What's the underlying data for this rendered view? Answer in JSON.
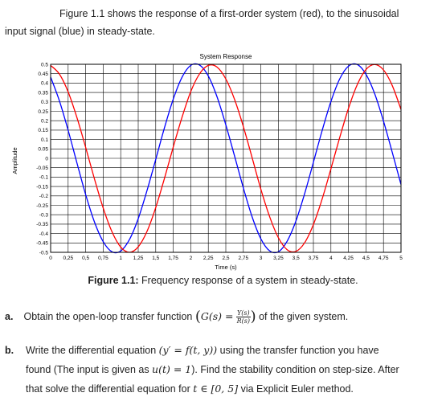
{
  "intro": {
    "line1": "Figure 1.1 shows the response of a first-order system (red), to the sinusoidal",
    "line2": "input signal (blue) in steady-state."
  },
  "caption": {
    "label": "Figure 1.1:",
    "text": " Frequency response of a system in steady-state."
  },
  "question_a": {
    "label": "a.",
    "text_before": "Obtain the open-loop transfer function ",
    "gs": "G(s) =",
    "num": "Y(s)",
    "den": "R(s)",
    "text_after": " of the given system."
  },
  "question_b": {
    "label": "b.",
    "line1_a": "Write the differential equation ",
    "eq1": "(y′ = f(t, y))",
    "line1_b": " using the transfer function you have",
    "line2_a": "found (The input is given as ",
    "eq2": "u(t) = 1",
    "line2_b": "). Find the stability condition on step-size. After",
    "line3_a": "that solve the differential equation for ",
    "eq3": "t ∈ [0, 5]",
    "line3_b": " via Explicit Euler method."
  },
  "chart_data": {
    "type": "line",
    "title": "System Response",
    "xlabel": "Time (s)",
    "ylabel": "Amplitude",
    "xlim": [
      0,
      5
    ],
    "ylim": [
      -0.5,
      0.5
    ],
    "grid": true,
    "x_ticks": [
      "0",
      "0,25",
      "0,5",
      "0,75",
      "1",
      "1,25",
      "1,5",
      "1,75",
      "2",
      "2,25",
      "2,5",
      "2,75",
      "3",
      "3,25",
      "3,5",
      "3,75",
      "4",
      "4,25",
      "4,5",
      "4,75",
      "5"
    ],
    "y_ticks": [
      "0.5",
      "0.45",
      "0.4",
      "0.35",
      "0.3",
      "0.25",
      "0.2",
      "0.15",
      "0.1",
      "0.05",
      "0",
      "-0.05",
      "-0.1",
      "-0.15",
      "-0.2",
      "-0.25",
      "-0.3",
      "-0.35",
      "-0.4",
      "-0.45",
      "-0.5"
    ],
    "series": [
      {
        "color": "#0000ff",
        "x": [
          0,
          0.125,
          0.25,
          0.375,
          0.5,
          0.625,
          0.75,
          0.875,
          1.0,
          1.125,
          1.25,
          1.375,
          1.5,
          1.625,
          1.75,
          1.875,
          2.0,
          2.125,
          2.25,
          2.375,
          2.5,
          2.625,
          2.75,
          2.875,
          3.0,
          3.125,
          3.25,
          3.375,
          3.5,
          3.625,
          3.75,
          3.875,
          4.0,
          4.125,
          4.25,
          4.375,
          4.5,
          4.625,
          4.75,
          4.875,
          5.0
        ],
        "y": [
          0.432,
          0.306,
          0.149,
          -0.024,
          -0.193,
          -0.338,
          -0.443,
          -0.497,
          -0.493,
          -0.432,
          -0.321,
          -0.172,
          -0.006,
          0.163,
          0.315,
          0.431,
          0.494,
          0.496,
          0.438,
          0.327,
          0.178,
          0.012,
          -0.157,
          -0.311,
          -0.428,
          -0.492,
          -0.497,
          -0.441,
          -0.334,
          -0.188,
          -0.021,
          0.148,
          0.302,
          0.422,
          0.49,
          0.499,
          0.447,
          0.343,
          0.198,
          0.032,
          -0.139
        ]
      },
      {
        "color": "#ff0000",
        "x": [
          0,
          0.125,
          0.25,
          0.375,
          0.5,
          0.625,
          0.75,
          0.875,
          1.0,
          1.125,
          1.25,
          1.375,
          1.5,
          1.625,
          1.75,
          1.875,
          2.0,
          2.125,
          2.25,
          2.375,
          2.5,
          2.625,
          2.75,
          2.875,
          3.0,
          3.125,
          3.25,
          3.375,
          3.5,
          3.625,
          3.75,
          3.875,
          4.0,
          4.125,
          4.25,
          4.375,
          4.5,
          4.625,
          4.75,
          4.875,
          5.0
        ],
        "y": [
          0.494,
          0.448,
          0.353,
          0.217,
          0.058,
          -0.109,
          -0.264,
          -0.39,
          -0.472,
          -0.5,
          -0.471,
          -0.389,
          -0.262,
          -0.106,
          0.06,
          0.218,
          0.355,
          0.449,
          0.494,
          0.485,
          0.422,
          0.313,
          0.169,
          0.004,
          -0.164,
          -0.31,
          -0.422,
          -0.486,
          -0.495,
          -0.449,
          -0.352,
          -0.216,
          -0.056,
          0.11,
          0.265,
          0.391,
          0.472,
          0.499,
          0.47,
          0.387,
          0.26
        ]
      }
    ]
  }
}
